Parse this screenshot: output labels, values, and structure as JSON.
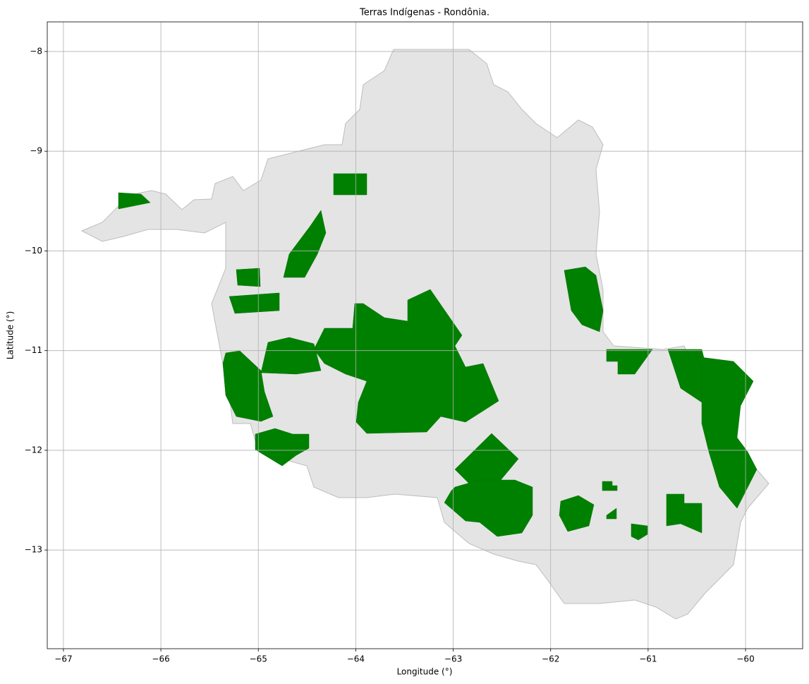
{
  "chart_data": {
    "type": "map",
    "title": "Terras Indígenas - Rondônia.",
    "x_label": "Longitude (°)",
    "y_label": "Latitude (°)",
    "xlim": [
      -67.166,
      -59.414
    ],
    "ylim": [
      -13.99,
      -7.703
    ],
    "xticks": [
      {
        "value": -67,
        "label": "−67"
      },
      {
        "value": -66,
        "label": "−66"
      },
      {
        "value": -65,
        "label": "−65"
      },
      {
        "value": -64,
        "label": "−64"
      },
      {
        "value": -63,
        "label": "−63"
      },
      {
        "value": -62,
        "label": "−62"
      },
      {
        "value": -61,
        "label": "−61"
      },
      {
        "value": -60,
        "label": "−60"
      }
    ],
    "yticks": [
      {
        "value": -13,
        "label": "−13"
      },
      {
        "value": -12,
        "label": "−12"
      },
      {
        "value": -11,
        "label": "−11"
      },
      {
        "value": -10,
        "label": "−10"
      },
      {
        "value": -9,
        "label": "−9"
      },
      {
        "value": -8,
        "label": "−8"
      }
    ],
    "grid": true
  }
}
